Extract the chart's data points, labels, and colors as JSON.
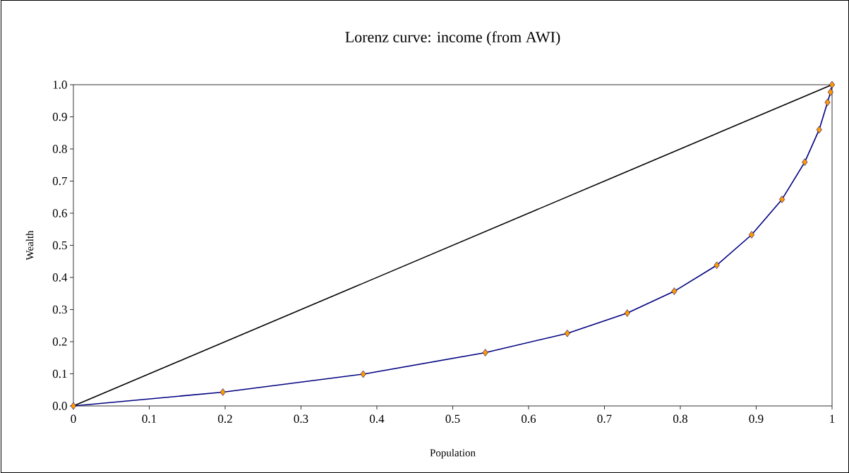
{
  "chart_data": {
    "type": "line",
    "title": "Lorenz curve: income (from AWI)",
    "xlabel": "Population",
    "ylabel": "Wealth",
    "xlim": [
      0,
      1
    ],
    "ylim": [
      0,
      1
    ],
    "xticks": [
      0,
      0.1,
      0.2,
      0.3,
      0.4,
      0.5,
      0.6,
      0.7,
      0.8,
      0.9,
      1
    ],
    "yticks": [
      {
        "value": 0,
        "label": "0.0"
      },
      0.1,
      0.2,
      0.3,
      0.4,
      0.5,
      0.6,
      0.7,
      0.8,
      0.9,
      {
        "value": 1,
        "label": "1.0"
      }
    ],
    "grid": false,
    "series": [
      {
        "color": "#000000",
        "marker": "none",
        "x": [
          0,
          1
        ],
        "values": [
          0,
          1
        ]
      },
      {
        "color": "#000080",
        "marker": "diamond",
        "x": [
          0,
          0.197,
          0.382,
          0.543,
          0.651,
          0.73,
          0.792,
          0.848,
          0.894,
          0.934,
          0.964,
          0.983,
          0.994,
          0.998,
          1.0
        ],
        "values": [
          0,
          0.043,
          0.099,
          0.166,
          0.226,
          0.289,
          0.357,
          0.438,
          0.533,
          0.643,
          0.759,
          0.86,
          0.945,
          0.977,
          1.0
        ]
      }
    ]
  }
}
